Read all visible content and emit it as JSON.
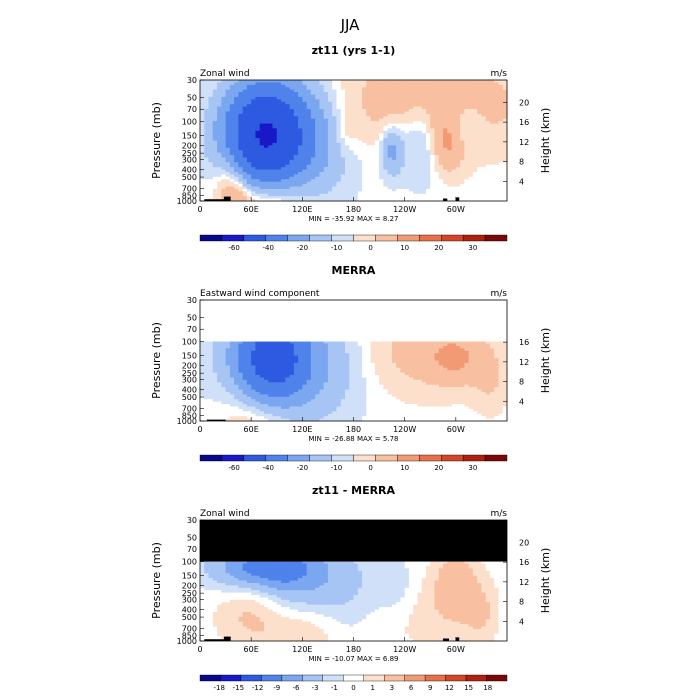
{
  "figure_title": "JJA",
  "colors": {
    "neg": [
      "#08088a",
      "#1818c8",
      "#2d5ae0",
      "#4f82ea",
      "#7ba6f0",
      "#a6c4f4",
      "#cfe0f8"
    ],
    "zero": "#ffffff",
    "pos": [
      "#fde0cc",
      "#f8bfa0",
      "#f29a74",
      "#e86f48",
      "#d44528",
      "#b02010",
      "#7a0808"
    ],
    "masked": "#000000",
    "terrain": "#000000"
  },
  "chart_data": [
    {
      "type": "heatmap",
      "title": "zt11 (yrs 1-1)",
      "left_label": "Zonal wind",
      "right_label": "m/s",
      "xlabel": "",
      "ylabel": "Pressure (mb)",
      "y2label": "Height (km)",
      "x_ticks": [
        "0",
        "60E",
        "120E",
        "180",
        "120W",
        "60W"
      ],
      "y_ticks": [
        "30",
        "50",
        "70",
        "100",
        "150",
        "200",
        "250",
        "300",
        "400",
        "500",
        "700",
        "850",
        "1000"
      ],
      "y2_ticks": [
        "20",
        "16",
        "12",
        "8",
        "4"
      ],
      "ylim": [
        1000,
        30
      ],
      "min_max_text": "MIN = -35.92   MAX =    8.27",
      "colorbar_labels": [
        "-60",
        "-40",
        "-20",
        "-10",
        "0",
        "10",
        "20",
        "30"
      ],
      "mask_top_p": null,
      "palette": "full",
      "blobs": [
        {
          "lon": 75,
          "p": 155,
          "value": -35,
          "rx": 40,
          "rp": 0.55
        },
        {
          "lon": 100,
          "p": 175,
          "value": -12,
          "rx": 60,
          "rp": 0.7
        },
        {
          "lon": 225,
          "p": 230,
          "value": -6,
          "rx": 12,
          "rp": 0.3
        },
        {
          "lon": 260,
          "p": 170,
          "value": -4,
          "rx": 30,
          "rp": 0.5
        },
        {
          "lon": 300,
          "p": 115,
          "value": -5,
          "rx": 25,
          "rp": 0.3
        },
        {
          "lon": 265,
          "p": 60,
          "value": 4,
          "rx": 120,
          "rp": 0.6
        },
        {
          "lon": 80,
          "p": 700,
          "value": 8,
          "rx": 45,
          "rp": 0.55
        },
        {
          "lon": 40,
          "p": 500,
          "value": 5,
          "rx": 20,
          "rp": 0.6
        },
        {
          "lon": 170,
          "p": 130,
          "value": 2,
          "rx": 15,
          "rp": 0.3
        },
        {
          "lon": 290,
          "p": 150,
          "value": 8,
          "rx": 20,
          "rp": 0.4
        }
      ],
      "terrain": [
        {
          "lon_start": 5,
          "lon_end": 30,
          "p_top": 950
        },
        {
          "lon_start": 28,
          "lon_end": 36,
          "p_top": 880
        },
        {
          "lon_start": 285,
          "lon_end": 290,
          "p_top": 930
        },
        {
          "lon_start": 300,
          "lon_end": 304,
          "p_top": 900
        }
      ]
    },
    {
      "type": "heatmap",
      "title": "MERRA",
      "left_label": "Eastward wind component",
      "right_label": "m/s",
      "xlabel": "",
      "ylabel": "Pressure (mb)",
      "y2label": "Height (km)",
      "x_ticks": [
        "0",
        "60E",
        "120E",
        "180",
        "120W",
        "60W"
      ],
      "y_ticks": [
        "30",
        "50",
        "70",
        "100",
        "150",
        "200",
        "250",
        "300",
        "400",
        "500",
        "700",
        "850",
        "1000"
      ],
      "y2_ticks": [
        "16",
        "12",
        "8",
        "4"
      ],
      "ylim": [
        1000,
        30
      ],
      "min_max_text": "MIN = -26.88   MAX =    5.78",
      "colorbar_labels": [
        "-60",
        "-40",
        "-20",
        "-10",
        "0",
        "10",
        "20",
        "30"
      ],
      "mask_top_p": 100,
      "mask_color": "white",
      "palette": "full",
      "blobs": [
        {
          "lon": 85,
          "p": 165,
          "value": -24,
          "rx": 35,
          "rp": 0.45
        },
        {
          "lon": 100,
          "p": 200,
          "value": -8,
          "rx": 70,
          "rp": 0.7
        },
        {
          "lon": 260,
          "p": 140,
          "value": 3,
          "rx": 70,
          "rp": 0.5
        },
        {
          "lon": 300,
          "p": 160,
          "value": 4,
          "rx": 30,
          "rp": 0.3
        },
        {
          "lon": 70,
          "p": 720,
          "value": 4,
          "rx": 45,
          "rp": 0.5
        },
        {
          "lon": 340,
          "p": 300,
          "value": 2,
          "rx": 20,
          "rp": 0.4
        }
      ],
      "terrain": [
        {
          "lon_start": 8,
          "lon_end": 30,
          "p_top": 960
        }
      ]
    },
    {
      "type": "heatmap",
      "title": "zt11 - MERRA",
      "left_label": "Zonal wind",
      "right_label": "m/s",
      "xlabel": "",
      "ylabel": "Pressure (mb)",
      "y2label": "Height (km)",
      "x_ticks": [
        "0",
        "60E",
        "120E",
        "180",
        "120W",
        "60W"
      ],
      "y_ticks": [
        "30",
        "50",
        "70",
        "100",
        "150",
        "200",
        "250",
        "300",
        "400",
        "500",
        "700",
        "850",
        "1000"
      ],
      "y2_ticks": [
        "20",
        "16",
        "12",
        "8",
        "4"
      ],
      "ylim": [
        1000,
        30
      ],
      "min_max_text": "MIN = -10.07   MAX =    6.89",
      "colorbar_labels": [
        "-18",
        "-15",
        "-12",
        "-9",
        "-6",
        "-3",
        "-1",
        "0",
        "1",
        "3",
        "6",
        "9",
        "12",
        "15",
        "18"
      ],
      "mask_top_p": 100,
      "mask_color": "black",
      "palette": "diff",
      "blobs": [
        {
          "lon": 70,
          "p": 120,
          "value": -10,
          "rx": 60,
          "rp": 0.3
        },
        {
          "lon": 120,
          "p": 160,
          "value": -5,
          "rx": 60,
          "rp": 0.5
        },
        {
          "lon": 300,
          "p": 200,
          "value": 5,
          "rx": 25,
          "rp": 0.45
        },
        {
          "lon": 330,
          "p": 450,
          "value": 3,
          "rx": 20,
          "rp": 0.4
        },
        {
          "lon": 60,
          "p": 400,
          "value": 4,
          "rx": 40,
          "rp": 0.5
        },
        {
          "lon": 250,
          "p": 400,
          "value": 2,
          "rx": 60,
          "rp": 0.5
        },
        {
          "lon": 120,
          "p": 800,
          "value": 3,
          "rx": 40,
          "rp": 0.3
        },
        {
          "lon": 230,
          "p": 220,
          "value": -3,
          "rx": 25,
          "rp": 0.4
        },
        {
          "lon": 180,
          "p": 250,
          "value": -2,
          "rx": 35,
          "rp": 0.6
        }
      ],
      "terrain": [
        {
          "lon_start": 5,
          "lon_end": 28,
          "p_top": 950
        },
        {
          "lon_start": 28,
          "lon_end": 36,
          "p_top": 880
        },
        {
          "lon_start": 285,
          "lon_end": 292,
          "p_top": 930
        },
        {
          "lon_start": 300,
          "lon_end": 304,
          "p_top": 900
        }
      ]
    }
  ]
}
